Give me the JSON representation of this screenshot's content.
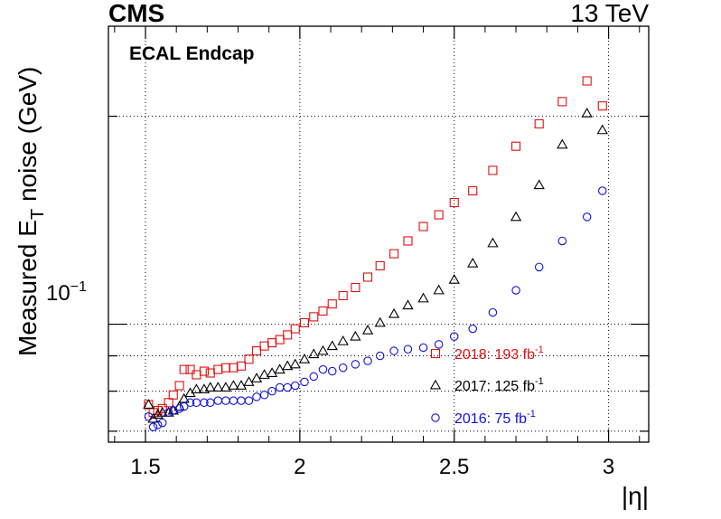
{
  "chart_data": {
    "type": "scatter",
    "header_left": "CMS",
    "header_right": "13 TeV",
    "annotation": "ECAL Endcap",
    "ylabel_main": "Measured E",
    "ylabel_sub": "T",
    "ylabel_rest": " noise (GeV)",
    "xlabel": "|η|",
    "xlim": [
      1.38,
      3.13
    ],
    "ylim": [
      0.0675,
      0.27
    ],
    "yscale": "log",
    "grid": true,
    "legend_position": "bottom-right",
    "x_ticks": [
      1.5,
      2,
      2.5,
      3
    ],
    "x_tick_labels": [
      "1.5",
      "2",
      "2.5",
      "3"
    ],
    "y_major_tick_label": {
      "base": "10",
      "exp": "−1",
      "value": 0.1
    },
    "series": [
      {
        "name_main": "2018: 193 fb",
        "name_sup": "-1",
        "color": "#dd1111",
        "marker": "square",
        "x": [
          1.51,
          1.525,
          1.54,
          1.555,
          1.575,
          1.59,
          1.61,
          1.625,
          1.645,
          1.665,
          1.69,
          1.71,
          1.735,
          1.76,
          1.785,
          1.81,
          1.835,
          1.86,
          1.885,
          1.91,
          1.935,
          1.96,
          1.985,
          2.015,
          2.045,
          2.075,
          2.105,
          2.14,
          2.18,
          2.22,
          2.26,
          2.305,
          2.35,
          2.4,
          2.45,
          2.5,
          2.56,
          2.625,
          2.7,
          2.775,
          2.85,
          2.93,
          2.98
        ],
        "y": [
          0.0765,
          0.0745,
          0.075,
          0.0755,
          0.077,
          0.079,
          0.0815,
          0.086,
          0.086,
          0.0845,
          0.0855,
          0.085,
          0.086,
          0.0865,
          0.0865,
          0.087,
          0.089,
          0.0915,
          0.093,
          0.094,
          0.095,
          0.0965,
          0.0985,
          0.1005,
          0.1025,
          0.1045,
          0.107,
          0.11,
          0.113,
          0.117,
          0.1215,
          0.1265,
          0.132,
          0.1385,
          0.144,
          0.15,
          0.156,
          0.167,
          0.181,
          0.195,
          0.21,
          0.225,
          0.207
        ]
      },
      {
        "name_main": "2017: 125 fb",
        "name_sup": "-1",
        "color": "#000000",
        "marker": "triangle",
        "x": [
          1.51,
          1.525,
          1.54,
          1.555,
          1.575,
          1.59,
          1.61,
          1.625,
          1.645,
          1.665,
          1.69,
          1.71,
          1.735,
          1.76,
          1.785,
          1.81,
          1.835,
          1.86,
          1.885,
          1.91,
          1.935,
          1.96,
          1.985,
          2.015,
          2.045,
          2.075,
          2.105,
          2.14,
          2.18,
          2.22,
          2.26,
          2.305,
          2.35,
          2.4,
          2.45,
          2.5,
          2.56,
          2.625,
          2.7,
          2.775,
          2.85,
          2.93,
          2.98
        ],
        "y": [
          0.0765,
          0.073,
          0.074,
          0.0745,
          0.0745,
          0.075,
          0.076,
          0.078,
          0.0795,
          0.0805,
          0.0805,
          0.081,
          0.081,
          0.081,
          0.0815,
          0.0815,
          0.0825,
          0.0835,
          0.0845,
          0.085,
          0.086,
          0.087,
          0.0875,
          0.089,
          0.0905,
          0.0915,
          0.093,
          0.0945,
          0.096,
          0.098,
          0.1005,
          0.1035,
          0.1065,
          0.109,
          0.112,
          0.116,
          0.1225,
          0.131,
          0.143,
          0.159,
          0.182,
          0.202,
          0.191
        ]
      },
      {
        "name_main": "2016: 75 fb",
        "name_sup": "-1",
        "color": "#1111dd",
        "marker": "circle",
        "x": [
          1.51,
          1.525,
          1.54,
          1.555,
          1.575,
          1.59,
          1.61,
          1.625,
          1.645,
          1.665,
          1.69,
          1.71,
          1.735,
          1.76,
          1.785,
          1.81,
          1.835,
          1.86,
          1.885,
          1.91,
          1.935,
          1.96,
          1.985,
          2.015,
          2.045,
          2.075,
          2.105,
          2.14,
          2.18,
          2.22,
          2.26,
          2.305,
          2.35,
          2.4,
          2.45,
          2.5,
          2.56,
          2.625,
          2.7,
          2.775,
          2.85,
          2.93,
          2.98
        ],
        "y": [
          0.0735,
          0.071,
          0.0715,
          0.072,
          0.0745,
          0.075,
          0.0755,
          0.076,
          0.077,
          0.077,
          0.077,
          0.077,
          0.0775,
          0.0775,
          0.0775,
          0.0775,
          0.0775,
          0.0785,
          0.079,
          0.08,
          0.081,
          0.081,
          0.0815,
          0.0825,
          0.084,
          0.086,
          0.0855,
          0.0865,
          0.0875,
          0.0885,
          0.09,
          0.0915,
          0.092,
          0.0925,
          0.0935,
          0.096,
          0.0985,
          0.104,
          0.112,
          0.121,
          0.132,
          0.143,
          0.156
        ]
      }
    ]
  }
}
